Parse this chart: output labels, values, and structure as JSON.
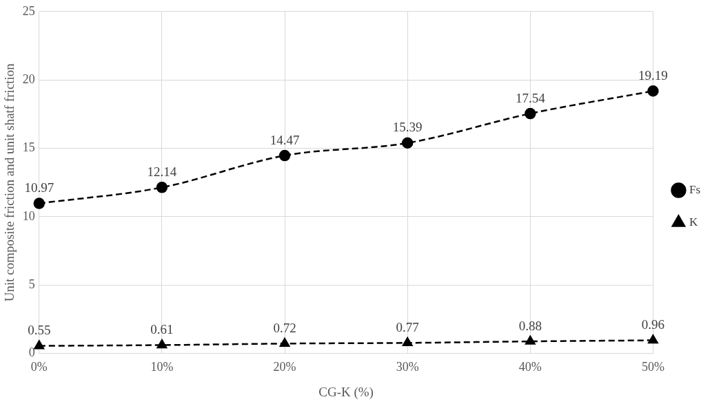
{
  "chart_data": {
    "type": "line",
    "xlabel": "CG-K (%)",
    "ylabel": "Unit composite friction and unit shatf friction",
    "categories": [
      "0%",
      "10%",
      "20%",
      "30%",
      "40%",
      "50%"
    ],
    "series": [
      {
        "name": "Fs",
        "color": "#000000",
        "marker": "circle",
        "line_style": "dashed",
        "values": [
          10.97,
          12.14,
          14.47,
          15.39,
          17.54,
          19.19
        ]
      },
      {
        "name": "K",
        "color": "#000000",
        "marker": "triangle",
        "line_style": "dashed",
        "values": [
          0.55,
          0.61,
          0.72,
          0.77,
          0.88,
          0.96
        ]
      }
    ],
    "ylim": [
      0,
      25
    ],
    "yticks": [
      0,
      5,
      10,
      15,
      20,
      25
    ],
    "grid": true,
    "legend": "right",
    "data_labels": true
  }
}
